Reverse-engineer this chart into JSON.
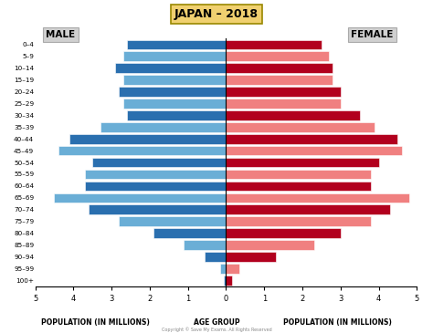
{
  "title": "JAPAN – 2018",
  "male_label": "MALE",
  "female_label": "FEMALE",
  "xlabel_left": "POPULATION (IN MILLIONS)",
  "xlabel_right": "POPULATION (IN MILLIONS)",
  "xlabel_center": "AGE GROUP",
  "copyright": "Copyright © Save My Exams. All Rights Reserved",
  "age_groups": [
    "100+",
    "95–99",
    "90–94",
    "85–89",
    "80–84",
    "75–79",
    "70–74",
    "65–69",
    "60–64",
    "55–59",
    "50–54",
    "45–49",
    "40–44",
    "35–39",
    "30–34",
    "25–29",
    "20–24",
    "15–19",
    "10–14",
    "5–9",
    "0–4"
  ],
  "male_values": [
    0.05,
    0.15,
    0.55,
    1.1,
    1.9,
    2.8,
    3.6,
    4.5,
    3.7,
    3.7,
    3.5,
    4.4,
    4.1,
    3.3,
    2.6,
    2.7,
    2.8,
    2.7,
    2.9,
    2.7,
    2.6
  ],
  "female_values": [
    0.15,
    0.35,
    1.3,
    2.3,
    3.0,
    3.8,
    4.3,
    4.8,
    3.8,
    3.8,
    4.0,
    4.6,
    4.5,
    3.9,
    3.5,
    3.0,
    3.0,
    2.8,
    2.8,
    2.7,
    2.5
  ],
  "male_dark_color": "#2a6faf",
  "male_light_color": "#6aaed6",
  "female_dark_color": "#b2001e",
  "female_light_color": "#f08080",
  "title_bg_color": "#f0d070",
  "label_bg_color": "#d0d0d0",
  "xlim": 5,
  "background_color": "#ffffff"
}
